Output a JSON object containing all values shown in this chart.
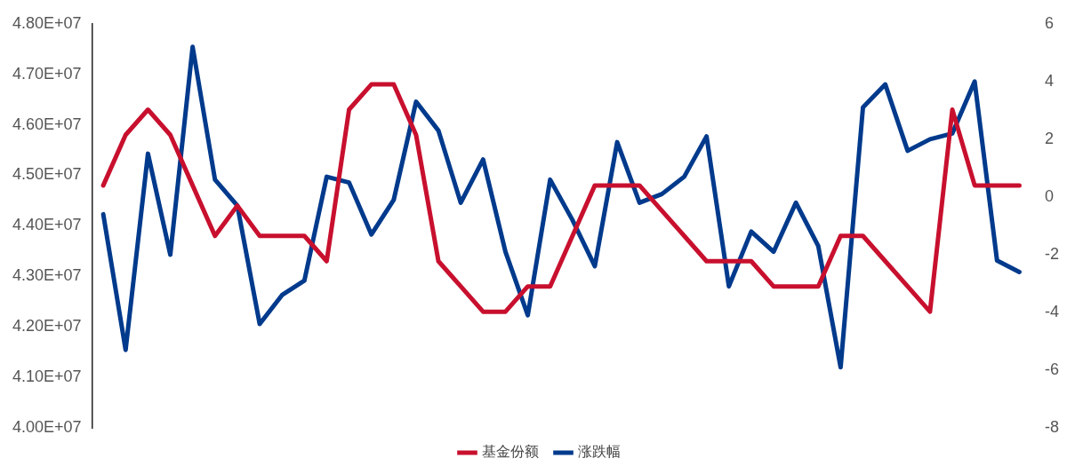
{
  "chart_data": {
    "type": "line",
    "categories": [
      null,
      null,
      null,
      null,
      null,
      null,
      null,
      null,
      null,
      null,
      null,
      null,
      null,
      null,
      null,
      null,
      null,
      null,
      null,
      null,
      null,
      null,
      null,
      null,
      null,
      null,
      null,
      null,
      null,
      null,
      null,
      null,
      null,
      null,
      null,
      null,
      null,
      null,
      null,
      null,
      null,
      null
    ],
    "series": [
      {
        "name": "基金份额",
        "color": "#c8102e",
        "values": [
          44800000,
          45800000,
          46300000,
          45800000,
          44800000,
          43800000,
          44400000,
          43800000,
          43800000,
          43800000,
          43300000,
          46300000,
          46800000,
          46800000,
          45800000,
          43300000,
          42800000,
          42300000,
          42300000,
          42800000,
          42800000,
          43800000,
          44800000,
          44800000,
          44800000,
          44300000,
          43800000,
          43300000,
          43300000,
          43300000,
          42800000,
          42800000,
          42800000,
          43800000,
          43800000,
          43300000,
          42800000,
          42300000,
          46300000,
          44800000,
          44800000,
          44800000
        ]
      },
      {
        "name": "涨跌幅",
        "color": "#003a8c",
        "axis": "y2",
        "values": [
          -0.6,
          -5.3,
          1.5,
          -2.0,
          5.2,
          0.6,
          -0.3,
          -4.4,
          -3.4,
          -2.9,
          0.7,
          0.5,
          -1.3,
          -0.1,
          3.3,
          2.3,
          -0.2,
          1.3,
          -1.9,
          -4.1,
          0.6,
          -0.8,
          -2.4,
          1.9,
          -0.2,
          0.1,
          0.7,
          2.1,
          -3.1,
          -1.2,
          -1.9,
          -0.2,
          -1.7,
          -5.9,
          3.1,
          3.9,
          1.6,
          2.0,
          2.2,
          4.0,
          -2.2,
          -2.6
        ]
      }
    ],
    "ylim": [
      40000000,
      48000000
    ],
    "yticks": [
      {
        "value": 40000000,
        "label": "4.00E+07"
      },
      {
        "value": 41000000,
        "label": "4.10E+07"
      },
      {
        "value": 42000000,
        "label": "4.20E+07"
      },
      {
        "value": 43000000,
        "label": "4.30E+07"
      },
      {
        "value": 44000000,
        "label": "4.40E+07"
      },
      {
        "value": 45000000,
        "label": "4.50E+07"
      },
      {
        "value": 46000000,
        "label": "4.60E+07"
      },
      {
        "value": 47000000,
        "label": "4.70E+07"
      },
      {
        "value": 48000000,
        "label": "4.80E+07"
      }
    ],
    "y2lim": [
      -8,
      6
    ],
    "y2ticks": [
      -8,
      -6,
      -4,
      -2,
      0,
      2,
      4,
      6
    ],
    "legend": "bottom",
    "marker": "none",
    "line_style": "solid"
  }
}
